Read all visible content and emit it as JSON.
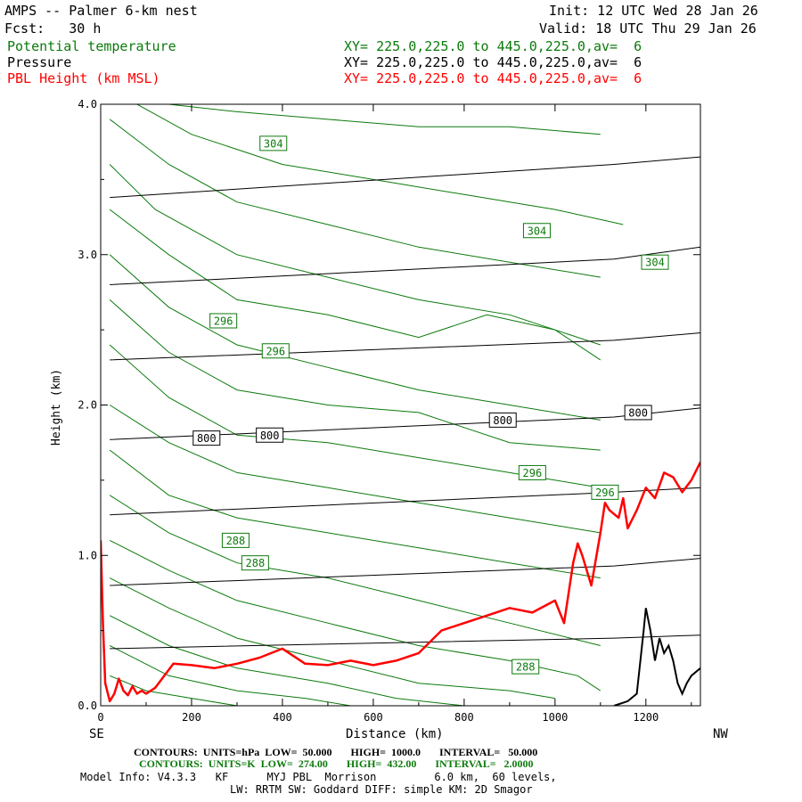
{
  "header": {
    "title": "AMPS -- Palmer 6-km nest",
    "fcst": "Fcst:   30 h",
    "init": "Init: 12 UTC Wed 28 Jan 26",
    "valid": "Valid: 18 UTC Thu 29 Jan 26",
    "fields": [
      {
        "name": "Potential temperature",
        "xy": "XY= 225.0,225.0 to 445.0,225.0,av=  6",
        "color": "#0c7a0c"
      },
      {
        "name": "Pressure",
        "xy": "XY= 225.0,225.0 to 445.0,225.0,av=  6",
        "color": "#000000"
      },
      {
        "name": "PBL Height (km MSL)",
        "xy": "XY= 225.0,225.0 to 445.0,225.0,av=  6",
        "color": "#ff0000"
      }
    ]
  },
  "footer": {
    "contours_p": "CONTOURS:  UNITS=hPa  LOW=  50.000       HIGH=  1000.0       INTERVAL=   50.000",
    "contours_k": "CONTOURS:  UNITS=K  LOW=  274.00       HIGH=  432.00       INTERVAL=   2.0000",
    "model_info": "Model Info: V4.3.3   KF      MYJ PBL  Morrison         6.0 km,  60 levels,",
    "model_info2": "LW: RRTM SW: Goddard DIFF: simple KM: 2D Smagor"
  },
  "chart_data": {
    "type": "line",
    "title": "AMPS -- Palmer 6-km nest",
    "xlabel": "Distance (km)",
    "ylabel": "Height (km)",
    "xlim": [
      0,
      1320
    ],
    "ylim": [
      0,
      4.0
    ],
    "x_ticks": [
      0,
      200,
      400,
      600,
      800,
      1000,
      1200
    ],
    "x_tick_labels": [
      "0",
      "200",
      "400",
      "600",
      "800",
      "1000",
      "1200"
    ],
    "y_ticks": [
      0,
      1.0,
      2.0,
      3.0,
      4.0
    ],
    "y_tick_labels": [
      "0.0",
      "1.0",
      "2.0",
      "3.0",
      "4.0"
    ],
    "x_end_labels": {
      "left": "SE",
      "right": "NW"
    },
    "colors": {
      "theta": "#0c7a0c",
      "pressure": "#000000",
      "pbl": "#ff0000"
    },
    "pressure_isobars": [
      {
        "y": [
          3.38,
          3.6,
          3.65
        ],
        "x": [
          20,
          1130,
          1320
        ]
      },
      {
        "y": [
          2.8,
          2.97,
          3.05
        ],
        "x": [
          20,
          1130,
          1320
        ]
      },
      {
        "y": [
          2.3,
          2.43,
          2.48
        ],
        "x": [
          20,
          1130,
          1320
        ]
      },
      {
        "y": [
          1.77,
          1.92,
          1.98
        ],
        "x": [
          20,
          1130,
          1320
        ]
      },
      {
        "y": [
          1.27,
          1.42,
          1.45
        ],
        "x": [
          20,
          1130,
          1320
        ]
      },
      {
        "y": [
          0.8,
          0.93,
          0.98
        ],
        "x": [
          20,
          1130,
          1320
        ]
      },
      {
        "y": [
          0.38,
          0.45,
          0.47
        ],
        "x": [
          20,
          1130,
          1320
        ]
      }
    ],
    "theta_contours": [
      {
        "level": 310,
        "x": [
          150,
          300,
          500,
          700,
          900,
          1100
        ],
        "y": [
          4.0,
          3.95,
          3.9,
          3.85,
          3.85,
          3.8
        ]
      },
      {
        "level": 308,
        "x": [
          80,
          200,
          400,
          600,
          800,
          1000,
          1150
        ],
        "y": [
          4.0,
          3.8,
          3.6,
          3.5,
          3.4,
          3.3,
          3.2
        ]
      },
      {
        "level": 306,
        "x": [
          20,
          150,
          300,
          500,
          700,
          900,
          1100
        ],
        "y": [
          3.9,
          3.6,
          3.35,
          3.2,
          3.05,
          2.95,
          2.85
        ]
      },
      {
        "level": 304,
        "x": [
          20,
          120,
          300,
          500,
          700,
          900,
          1100
        ],
        "y": [
          3.6,
          3.3,
          3.0,
          2.85,
          2.7,
          2.6,
          2.4
        ]
      },
      {
        "level": 302,
        "x": [
          20,
          150,
          300,
          500,
          700,
          850,
          1000,
          1100
        ],
        "y": [
          3.3,
          3.0,
          2.7,
          2.6,
          2.45,
          2.6,
          2.5,
          2.3
        ]
      },
      {
        "level": 300,
        "x": [
          20,
          150,
          300,
          500,
          700,
          900,
          1100
        ],
        "y": [
          3.0,
          2.65,
          2.4,
          2.25,
          2.1,
          2.0,
          1.9
        ]
      },
      {
        "level": 298,
        "x": [
          20,
          150,
          300,
          500,
          700,
          900,
          1100
        ],
        "y": [
          2.7,
          2.35,
          2.1,
          2.0,
          1.95,
          1.75,
          1.7
        ]
      },
      {
        "level": 296,
        "x": [
          20,
          150,
          300,
          500,
          700,
          900,
          1100
        ],
        "y": [
          2.4,
          2.05,
          1.8,
          1.75,
          1.65,
          1.55,
          1.45
        ]
      },
      {
        "level": 294,
        "x": [
          20,
          150,
          300,
          500,
          700,
          900,
          1100
        ],
        "y": [
          2.0,
          1.75,
          1.55,
          1.45,
          1.35,
          1.25,
          1.15
        ]
      },
      {
        "level": 292,
        "x": [
          20,
          150,
          300,
          500,
          700,
          900,
          1100
        ],
        "y": [
          1.7,
          1.4,
          1.25,
          1.15,
          1.05,
          0.95,
          0.85
        ]
      },
      {
        "level": 290,
        "x": [
          20,
          150,
          300,
          500,
          700,
          900,
          1100
        ],
        "y": [
          1.4,
          1.15,
          0.95,
          0.85,
          0.7,
          0.55,
          0.4
        ]
      },
      {
        "level": 288,
        "x": [
          20,
          150,
          300,
          500,
          700,
          900,
          1050,
          1100
        ],
        "y": [
          1.1,
          0.9,
          0.7,
          0.55,
          0.4,
          0.3,
          0.2,
          0.1
        ]
      },
      {
        "level": 286,
        "x": [
          20,
          150,
          300,
          500,
          700,
          900,
          1000
        ],
        "y": [
          0.85,
          0.65,
          0.45,
          0.3,
          0.15,
          0.1,
          0.05
        ]
      },
      {
        "level": 284,
        "x": [
          20,
          150,
          300,
          500,
          650,
          800
        ],
        "y": [
          0.6,
          0.4,
          0.25,
          0.15,
          0.05,
          0.0
        ]
      },
      {
        "level": 282,
        "x": [
          20,
          150,
          300,
          450,
          550
        ],
        "y": [
          0.4,
          0.2,
          0.1,
          0.05,
          0.0
        ]
      },
      {
        "level": 280,
        "x": [
          20,
          100,
          200,
          300
        ],
        "y": [
          0.2,
          0.1,
          0.05,
          0.0
        ]
      }
    ],
    "contour_labels": [
      {
        "text": "304",
        "x": 380,
        "y": 3.74,
        "color": "#0c7a0c"
      },
      {
        "text": "304",
        "x": 960,
        "y": 3.16,
        "color": "#0c7a0c"
      },
      {
        "text": "304",
        "x": 1220,
        "y": 2.95,
        "color": "#0c7a0c"
      },
      {
        "text": "296",
        "x": 270,
        "y": 2.56,
        "color": "#0c7a0c"
      },
      {
        "text": "296",
        "x": 385,
        "y": 2.36,
        "color": "#0c7a0c"
      },
      {
        "text": "296",
        "x": 950,
        "y": 1.55,
        "color": "#0c7a0c"
      },
      {
        "text": "296",
        "x": 1110,
        "y": 1.42,
        "color": "#0c7a0c"
      },
      {
        "text": "288",
        "x": 297,
        "y": 1.1,
        "color": "#0c7a0c"
      },
      {
        "text": "288",
        "x": 340,
        "y": 0.95,
        "color": "#0c7a0c"
      },
      {
        "text": "288",
        "x": 935,
        "y": 0.26,
        "color": "#0c7a0c"
      },
      {
        "text": "800",
        "x": 233,
        "y": 1.78,
        "color": "#000000"
      },
      {
        "text": "800",
        "x": 372,
        "y": 1.8,
        "color": "#000000"
      },
      {
        "text": "800",
        "x": 885,
        "y": 1.9,
        "color": "#000000"
      },
      {
        "text": "800",
        "x": 1183,
        "y": 1.95,
        "color": "#000000"
      }
    ],
    "pbl_height": {
      "name": "PBL Height (km MSL)",
      "x": [
        0,
        5,
        10,
        20,
        30,
        40,
        50,
        60,
        70,
        80,
        90,
        100,
        120,
        140,
        160,
        200,
        250,
        300,
        350,
        400,
        450,
        500,
        550,
        600,
        650,
        700,
        750,
        800,
        850,
        900,
        950,
        1000,
        1020,
        1040,
        1050,
        1060,
        1080,
        1100,
        1110,
        1120,
        1140,
        1150,
        1160,
        1180,
        1200,
        1220,
        1240,
        1260,
        1280,
        1300,
        1320
      ],
      "y": [
        1.1,
        0.55,
        0.15,
        0.03,
        0.08,
        0.18,
        0.1,
        0.07,
        0.13,
        0.08,
        0.1,
        0.08,
        0.12,
        0.2,
        0.28,
        0.27,
        0.25,
        0.28,
        0.32,
        0.38,
        0.28,
        0.27,
        0.3,
        0.27,
        0.3,
        0.35,
        0.5,
        0.55,
        0.6,
        0.65,
        0.62,
        0.7,
        0.55,
        0.95,
        1.08,
        1.0,
        0.8,
        1.15,
        1.35,
        1.3,
        1.25,
        1.38,
        1.18,
        1.3,
        1.45,
        1.38,
        1.55,
        1.52,
        1.42,
        1.5,
        1.62
      ]
    },
    "terrain_profile": {
      "x": [
        1130,
        1160,
        1180,
        1195,
        1200,
        1210,
        1220,
        1230,
        1240,
        1250,
        1260,
        1270,
        1280,
        1290,
        1300,
        1320
      ],
      "y": [
        0.0,
        0.03,
        0.08,
        0.5,
        0.65,
        0.5,
        0.3,
        0.45,
        0.35,
        0.4,
        0.3,
        0.15,
        0.08,
        0.15,
        0.2,
        0.25
      ]
    }
  }
}
